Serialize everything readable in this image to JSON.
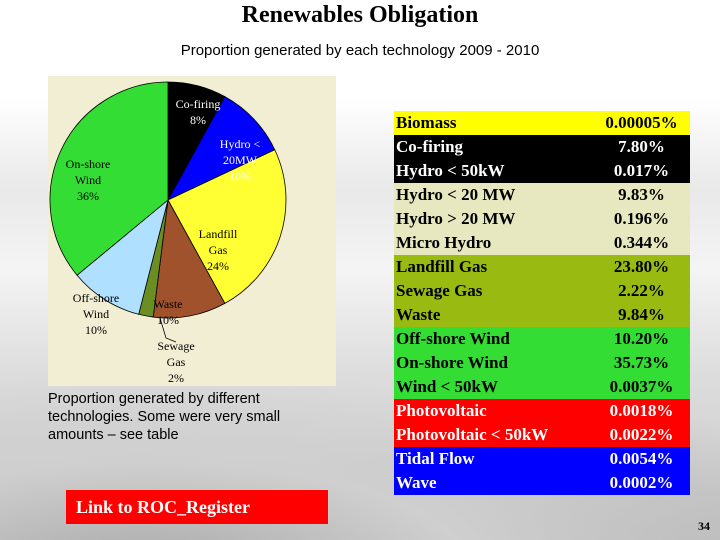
{
  "title": "Renewables Obligation",
  "subtitle": "Proportion generated by each technology  2009 - 2010",
  "caption": "Proportion generated by different technologies.   Some were very small amounts – see table",
  "link_label": "Link to ROC_Register",
  "page_number": "34",
  "chart_data": {
    "type": "pie",
    "start_angle_deg": 0,
    "slices": [
      {
        "label": "Co-firing\n8%",
        "value": 8,
        "color": "#000000",
        "label_color": "#ffffff"
      },
      {
        "label": "Hydro <\n20MW\n10%",
        "value": 10,
        "color": "#0000ff",
        "label_color": "#ffffff"
      },
      {
        "label": "Landfill\nGas\n24%",
        "value": 24,
        "color": "#ffff33",
        "label_color": "#000000"
      },
      {
        "label": "Waste\n10%",
        "value": 10,
        "color": "#a0522d",
        "label_color": "#000000"
      },
      {
        "label": "Sewage\nGas\n2%",
        "value": 2,
        "color": "#6b8e23",
        "label_color": "#000000"
      },
      {
        "label": "Off-shore\nWind\n10%",
        "value": 10,
        "color": "#b0e0ff",
        "label_color": "#000000"
      },
      {
        "label": "On-shore\nWind\n36%",
        "value": 36,
        "color": "#33dd33",
        "label_color": "#000000"
      }
    ]
  },
  "table": {
    "rows": [
      {
        "name": "Biomass",
        "value": "0.00005%",
        "bg": "#ffff00",
        "color": "#000000"
      },
      {
        "name": "Co-firing",
        "value": "7.80%",
        "bg": "#000000",
        "color": "#ffffff"
      },
      {
        "name": "Hydro < 50kW",
        "value": "0.017%",
        "bg": "#000000",
        "color": "#ffffff"
      },
      {
        "name": "Hydro < 20 MW",
        "value": "9.83%",
        "bg": "#e8e8c0",
        "color": "#000000"
      },
      {
        "name": "Hydro > 20 MW",
        "value": "0.196%",
        "bg": "#e8e8c0",
        "color": "#000000"
      },
      {
        "name": "Micro Hydro",
        "value": "0.344%",
        "bg": "#e8e8c0",
        "color": "#000000"
      },
      {
        "name": "Landfill Gas",
        "value": "23.80%",
        "bg": "#99bb11",
        "color": "#000000"
      },
      {
        "name": "Sewage Gas",
        "value": "2.22%",
        "bg": "#99bb11",
        "color": "#000000"
      },
      {
        "name": "Waste",
        "value": "9.84%",
        "bg": "#99bb11",
        "color": "#000000"
      },
      {
        "name": "Off-shore Wind",
        "value": "10.20%",
        "bg": "#33dd33",
        "color": "#000000"
      },
      {
        "name": "On-shore Wind",
        "value": "35.73%",
        "bg": "#33dd33",
        "color": "#000000"
      },
      {
        "name": "Wind < 50kW",
        "value": "0.0037%",
        "bg": "#33dd33",
        "color": "#000000"
      },
      {
        "name": "Photovoltaic",
        "value": "0.0018%",
        "bg": "#ff0000",
        "color": "#ffffff"
      },
      {
        "name": "Photovoltaic < 50kW",
        "value": "0.0022%",
        "bg": "#ff0000",
        "color": "#ffffff"
      },
      {
        "name": "Tidal Flow",
        "value": "0.0054%",
        "bg": "#0000ff",
        "color": "#ffffff"
      },
      {
        "name": "Wave",
        "value": "0.0002%",
        "bg": "#0000ff",
        "color": "#ffffff"
      }
    ]
  }
}
